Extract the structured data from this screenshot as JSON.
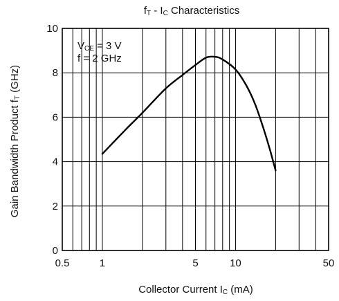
{
  "chart_data": {
    "type": "line",
    "title": {
      "main": "f",
      "sub": "T",
      "rest": " - I",
      "sub2": "C",
      "end": " Characteristics"
    },
    "xlabel": {
      "main": "Collector Current I",
      "sub": "C",
      "end": " (mA)"
    },
    "ylabel": {
      "main": "Gain Bandwidth Product f",
      "sub": "T",
      "end": " (GHz)"
    },
    "x_scale": "log",
    "xlim": [
      0.5,
      50
    ],
    "ylim": [
      0,
      10
    ],
    "x_ticks": [
      0.5,
      1,
      5,
      10,
      50
    ],
    "x_tick_labels": [
      "0.5",
      "1",
      "5",
      "10",
      "50"
    ],
    "y_ticks": [
      0,
      2,
      4,
      6,
      8,
      10
    ],
    "y_tick_labels": [
      "0",
      "2",
      "4",
      "6",
      "8",
      "10"
    ],
    "grid": true,
    "annotation": {
      "line1": {
        "main": "V",
        "sub": "CE",
        "end": " = 3 V"
      },
      "line2": "f = 2 GHz"
    },
    "series": [
      {
        "x": [
          1,
          1.5,
          2,
          3,
          4,
          5,
          6,
          7,
          8,
          10,
          12,
          14,
          16,
          18,
          20
        ],
        "y": [
          4.35,
          5.45,
          6.2,
          7.3,
          7.9,
          8.35,
          8.68,
          8.72,
          8.6,
          8.15,
          7.45,
          6.6,
          5.6,
          4.6,
          3.6
        ]
      }
    ]
  }
}
